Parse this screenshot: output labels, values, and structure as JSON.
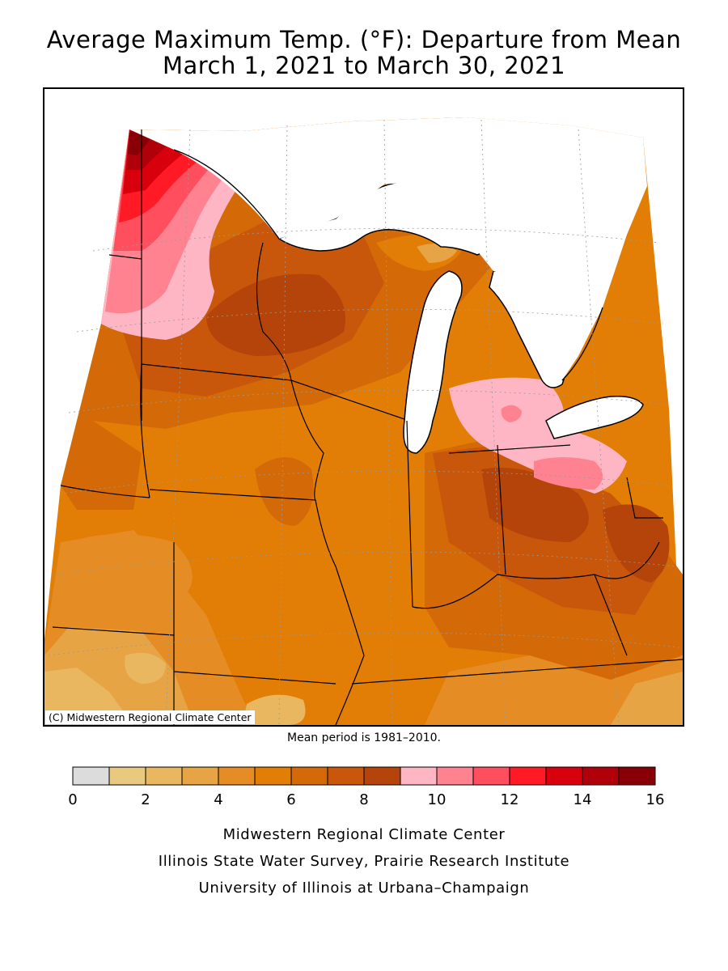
{
  "title": {
    "line1": "Average Maximum Temp. (°F): Departure from Mean",
    "line2": "March 1, 2021 to March 30, 2021"
  },
  "map": {
    "copyright": "(C) Midwestern Regional Climate Center",
    "mean_note": "Mean period is 1981–2010."
  },
  "legend": {
    "tick_labels": [
      "0",
      "2",
      "4",
      "6",
      "8",
      "10",
      "12",
      "14",
      "16"
    ],
    "bins": [
      {
        "from": 0,
        "to": 1,
        "color": "#dcdcdc"
      },
      {
        "from": 1,
        "to": 2,
        "color": "#e9c97f"
      },
      {
        "from": 2,
        "to": 3,
        "color": "#e8b760"
      },
      {
        "from": 3,
        "to": 4,
        "color": "#e6a444"
      },
      {
        "from": 4,
        "to": 5,
        "color": "#e58d24"
      },
      {
        "from": 5,
        "to": 6,
        "color": "#e27d05"
      },
      {
        "from": 6,
        "to": 7,
        "color": "#d46908"
      },
      {
        "from": 7,
        "to": 8,
        "color": "#c8570b"
      },
      {
        "from": 8,
        "to": 9,
        "color": "#b44409"
      },
      {
        "from": 9,
        "to": 10,
        "color": "#ffb6c4"
      },
      {
        "from": 10,
        "to": 11,
        "color": "#ff8290"
      },
      {
        "from": 11,
        "to": 12,
        "color": "#ff4f5e"
      },
      {
        "from": 12,
        "to": 13,
        "color": "#ff1a26"
      },
      {
        "from": 13,
        "to": 14,
        "color": "#d9000e"
      },
      {
        "from": 14,
        "to": 15,
        "color": "#b0000a"
      },
      {
        "from": 15,
        "to": 16,
        "color": "#880006"
      }
    ]
  },
  "credits": {
    "line1": "Midwestern Regional Climate Center",
    "line2": "Illinois State Water Survey, Prairie Research Institute",
    "line3": "University of Illinois at Urbana–Champaign"
  }
}
